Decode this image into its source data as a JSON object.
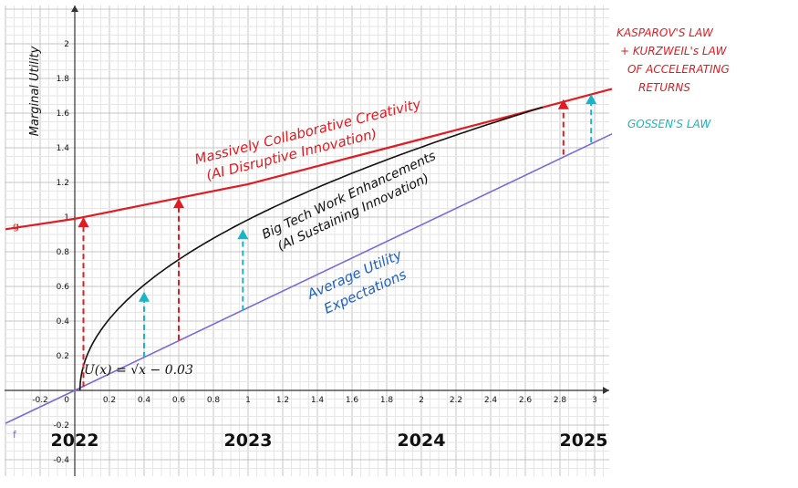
{
  "chart_data": {
    "type": "line",
    "ylabel": "Marginal Utility",
    "xlim": [
      -0.4,
      3.1
    ],
    "ylim": [
      -0.5,
      2.2
    ],
    "grid": true,
    "x_ticks": [
      "-0.2",
      "0.2",
      "0.4",
      "0.6",
      "0.8",
      "1",
      "1.2",
      "1.4",
      "1.6",
      "1.8",
      "2",
      "2.2",
      "2.4",
      "2.6",
      "2.8",
      "3"
    ],
    "y_ticks": [
      "-0.4",
      "-0.2",
      "0.2",
      "0.4",
      "0.6",
      "0.8",
      "1",
      "1.2",
      "1.4",
      "1.6",
      "1.8",
      "2"
    ],
    "origin_label": "0",
    "years": [
      {
        "label": "2022",
        "x": 0.0
      },
      {
        "label": "2023",
        "x": 1.0
      },
      {
        "label": "2024",
        "x": 2.0
      },
      {
        "label": "2025",
        "x": 3.0
      }
    ],
    "series": [
      {
        "key": "g",
        "name": "g",
        "color": "#e01b22",
        "points": [
          [
            -0.4,
            0.93
          ],
          [
            0.0,
            0.99
          ],
          [
            0.6,
            1.11
          ],
          [
            1.0,
            1.19
          ],
          [
            1.5,
            1.32
          ],
          [
            2.0,
            1.45
          ],
          [
            2.5,
            1.58
          ],
          [
            3.1,
            1.74
          ]
        ]
      },
      {
        "key": "f",
        "name": "f",
        "color": "#7b68d9",
        "points": [
          [
            -0.4,
            -0.19
          ],
          [
            0.0,
            0.0
          ],
          [
            3.1,
            1.48
          ]
        ]
      },
      {
        "key": "U",
        "name": "U(x) = √x − 0.03",
        "color": "#111111",
        "func": "sqrt",
        "shift": 0.03,
        "x_range": [
          0.03,
          2.7
        ]
      }
    ],
    "arrows": [
      {
        "x": 0.05,
        "y0": 0.02,
        "y1": 1.0,
        "color": "#e01b22"
      },
      {
        "x": 0.6,
        "y0": 0.29,
        "y1": 1.11,
        "color": "#e01b22"
      },
      {
        "x": 2.82,
        "y0": 1.36,
        "y1": 1.68,
        "color": "#e01b22"
      },
      {
        "x": 0.4,
        "y0": 0.19,
        "y1": 0.57,
        "color": "#17b5c5"
      },
      {
        "x": 0.97,
        "y0": 0.46,
        "y1": 0.93,
        "color": "#17b5c5"
      },
      {
        "x": 2.98,
        "y0": 1.43,
        "y1": 1.71,
        "color": "#17b5c5"
      }
    ],
    "annotations": {
      "formula": "U(x) = √x − 0.03",
      "massive_line1": "Massively Collaborative Creativity",
      "massive_line2": "(AI Disruptive Innovation)",
      "bigtech_line1": "Big Tech Work Enhancements",
      "bigtech_line2": "(AI Sustaining Innovation)",
      "average_line1": "Average Utility",
      "average_line2": "Expectations",
      "kasparov_line1": "KASPAROV'S LAW",
      "kasparov_line2": "+ KURZWEIL's LAW",
      "kasparov_line3": "OF ACCELERATING",
      "kasparov_line4": "RETURNS",
      "gossen": "GOSSEN'S LAW"
    },
    "colors": {
      "red": "#e01b22",
      "cyan": "#17b5c5",
      "purple": "#7b68d9",
      "blue_text": "#1f5fbf",
      "black": "#111111"
    }
  }
}
